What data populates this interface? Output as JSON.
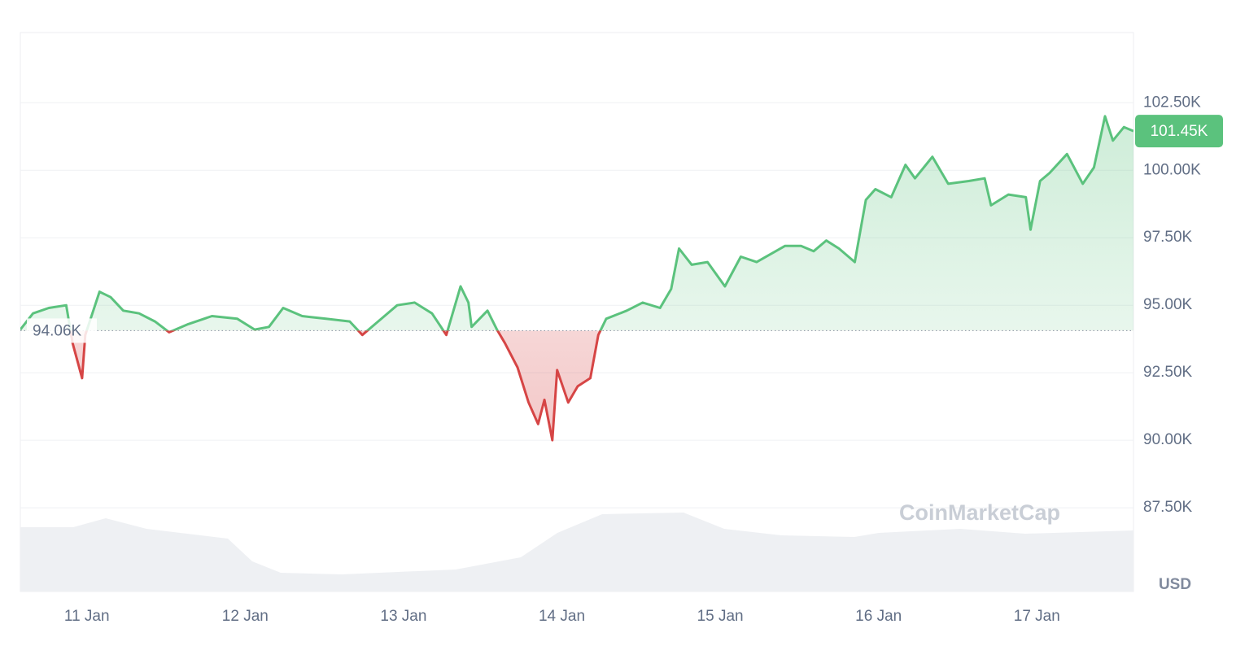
{
  "chart_data": {
    "type": "line",
    "x": [
      10.58,
      10.66,
      10.76,
      10.87,
      10.91,
      10.97,
      10.99,
      11.08,
      11.15,
      11.23,
      11.33,
      11.43,
      11.52,
      11.64,
      11.79,
      11.95,
      12.06,
      12.15,
      12.24,
      12.36,
      12.51,
      12.66,
      12.74,
      12.82,
      12.96,
      13.07,
      13.18,
      13.27,
      13.36,
      13.41,
      13.43,
      13.53,
      13.59,
      13.64,
      13.72,
      13.79,
      13.85,
      13.89,
      13.94,
      13.97,
      14.04,
      14.1,
      14.18,
      14.23,
      14.28,
      14.41,
      14.51,
      14.62,
      14.69,
      14.74,
      14.82,
      14.92,
      15.03,
      15.13,
      15.23,
      15.41,
      15.51,
      15.59,
      15.67,
      15.75,
      15.85,
      15.92,
      15.98,
      16.08,
      16.17,
      16.23,
      16.34,
      16.44,
      16.57,
      16.67,
      16.71,
      16.82,
      16.93,
      16.96,
      17.02,
      17.08,
      17.19,
      17.29,
      17.36,
      17.43,
      17.48,
      17.55,
      17.61
    ],
    "values": [
      94100,
      94700,
      94900,
      95000,
      93600,
      92300,
      93900,
      95500,
      95300,
      94800,
      94700,
      94400,
      94000,
      94300,
      94600,
      94500,
      94100,
      94200,
      94900,
      94600,
      94500,
      94400,
      93900,
      94300,
      95000,
      95100,
      94700,
      93900,
      95700,
      95100,
      94200,
      94800,
      94100,
      93600,
      92700,
      91400,
      90600,
      91500,
      90000,
      92600,
      91400,
      92000,
      92300,
      93900,
      94500,
      94800,
      95100,
      94900,
      95600,
      97100,
      96500,
      96600,
      95700,
      96800,
      96600,
      97200,
      97200,
      97000,
      97400,
      97100,
      96600,
      98900,
      99300,
      99000,
      100200,
      99700,
      100500,
      99500,
      99600,
      99700,
      98700,
      99100,
      99000,
      97800,
      99600,
      99900,
      100600,
      99500,
      100100,
      102000,
      101100,
      101600,
      101450
    ],
    "up_color": "#5bc27d",
    "down_color": "#d64545",
    "baseline": 94060,
    "baseline_label": "94.06K",
    "last_value_label": "101.45K",
    "xlim": [
      10.58,
      17.61
    ],
    "ylim": [
      84400,
      105100
    ],
    "xticks": [
      {
        "value": 11,
        "label": "11 Jan"
      },
      {
        "value": 12,
        "label": "12 Jan"
      },
      {
        "value": 13,
        "label": "13 Jan"
      },
      {
        "value": 14,
        "label": "14 Jan"
      },
      {
        "value": 15,
        "label": "15 Jan"
      },
      {
        "value": 16,
        "label": "16 Jan"
      },
      {
        "value": 17,
        "label": "17 Jan"
      }
    ],
    "yticks": [
      {
        "value": 87500,
        "label": "87.50K"
      },
      {
        "value": 90000,
        "label": "90.00K"
      },
      {
        "value": 92500,
        "label": "92.50K"
      },
      {
        "value": 95000,
        "label": "95.00K"
      },
      {
        "value": 97500,
        "label": "97.50K"
      },
      {
        "value": 100000,
        "label": "100.00K"
      },
      {
        "value": 102500,
        "label": "102.50K"
      }
    ],
    "grid": true,
    "currency": "USD",
    "watermark": "CoinMarketCap"
  }
}
